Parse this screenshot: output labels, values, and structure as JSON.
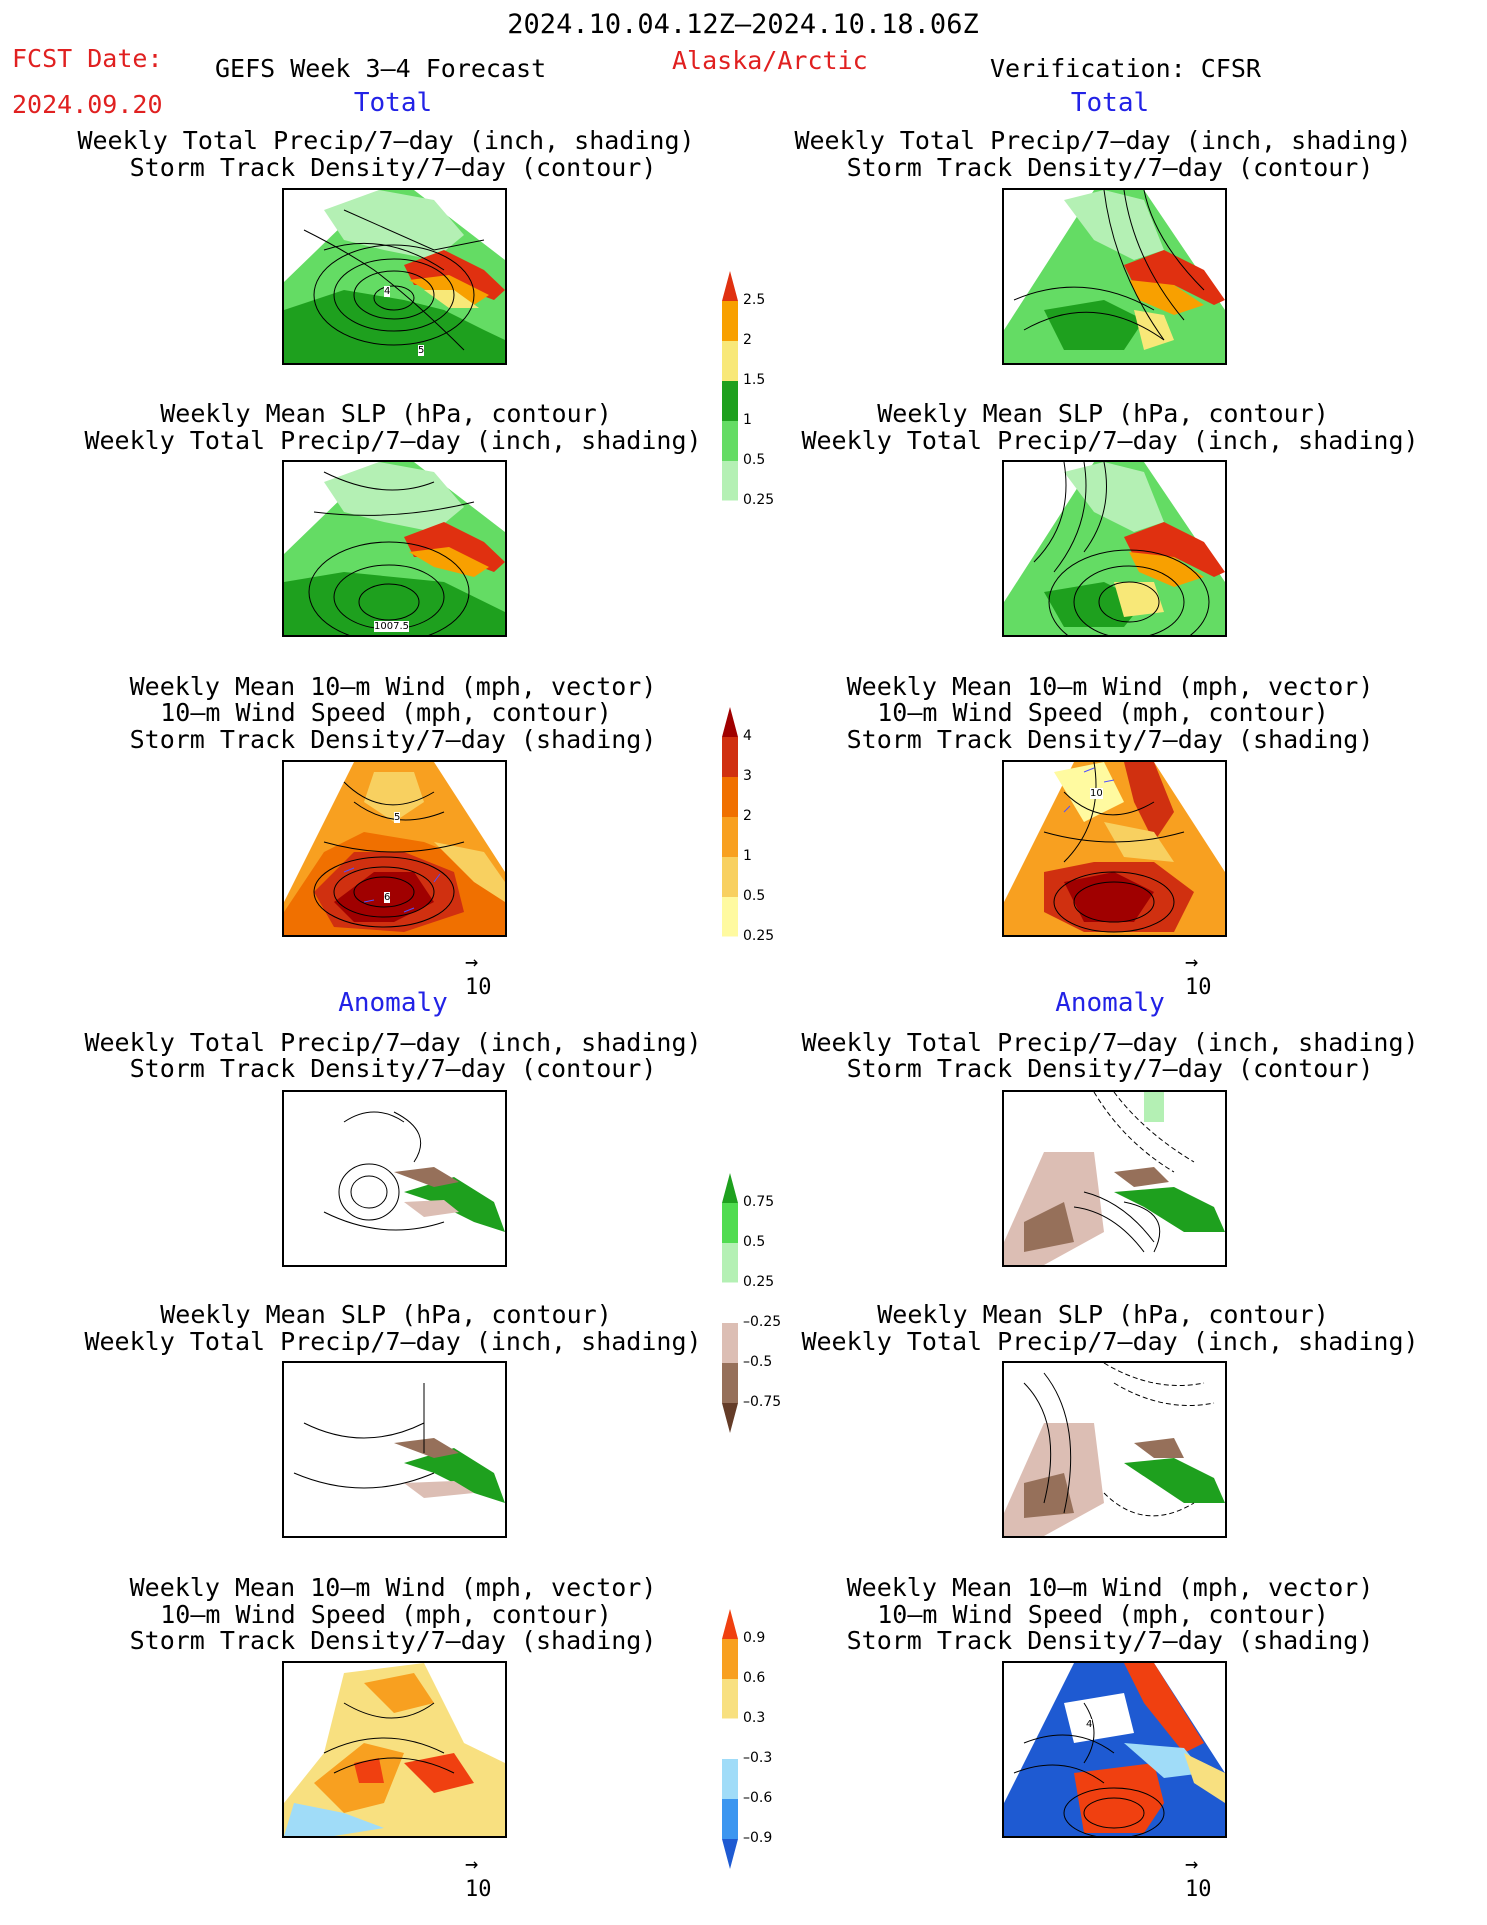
{
  "header": {
    "period": "2024.10.04.12Z–2024.10.18.06Z",
    "fcst_label": "FCST Date:",
    "fcst_date": "2024.09.20",
    "forecast_title": "GEFS Week 3–4 Forecast",
    "region": "Alaska/Arctic",
    "verification": "Verification: CFSR"
  },
  "sections": {
    "total": "Total",
    "anomaly": "Anomaly"
  },
  "titles": {
    "precip_total": "Weekly Total Precip/7–day (inch, shading)",
    "storm_contour": "Storm Track Density/7–day (contour)",
    "slp_contour": "Weekly Mean SLP (hPa, contour)",
    "wind_vector": "Weekly Mean 10–m Wind (mph, vector)",
    "wind_speed": "10–m Wind Speed (mph, contour)",
    "storm_shading": "Storm Track Density/7–day (shading)"
  },
  "map_labels": {
    "fc_precip_a": "4",
    "fc_precip_b": "5",
    "fc_slp": "1007.5",
    "fc_wind_a": "5",
    "fc_wind_b": "6",
    "ob_wind": "10",
    "ob_wind_anom": "4"
  },
  "vector_ref": "10",
  "colorbars": {
    "precip_total": {
      "colors": [
        "#ffffff",
        "#b4f0b4",
        "#64dc64",
        "#1ea01e",
        "#f8e878",
        "#f8a000",
        "#e03010"
      ],
      "labels": [
        "0.25",
        "0.5",
        "1",
        "1.5",
        "2",
        "2.5"
      ]
    },
    "storm_total": {
      "colors": [
        "#ffffff",
        "#fffaa0",
        "#f8d060",
        "#f8a020",
        "#f07000",
        "#d03010",
        "#a00000"
      ],
      "labels": [
        "0.25",
        "0.5",
        "1",
        "2",
        "3",
        "4"
      ]
    },
    "precip_anom": {
      "colors": [
        "#643c28",
        "#96705a",
        "#dcbeb4",
        "#ffffff",
        "#b4f0b4",
        "#50dc50",
        "#1ea01e"
      ],
      "labels": [
        "–0.75",
        "–0.5",
        "–0.25",
        "0.25",
        "0.5",
        "0.75"
      ]
    },
    "storm_anom": {
      "colors": [
        "#1e5ad2",
        "#3c96f0",
        "#a0dcf8",
        "#ffffff",
        "#f8e080",
        "#f8a020",
        "#f04010"
      ],
      "labels": [
        "–0.9",
        "–0.6",
        "–0.3",
        "0.3",
        "0.6",
        "0.9"
      ]
    }
  }
}
